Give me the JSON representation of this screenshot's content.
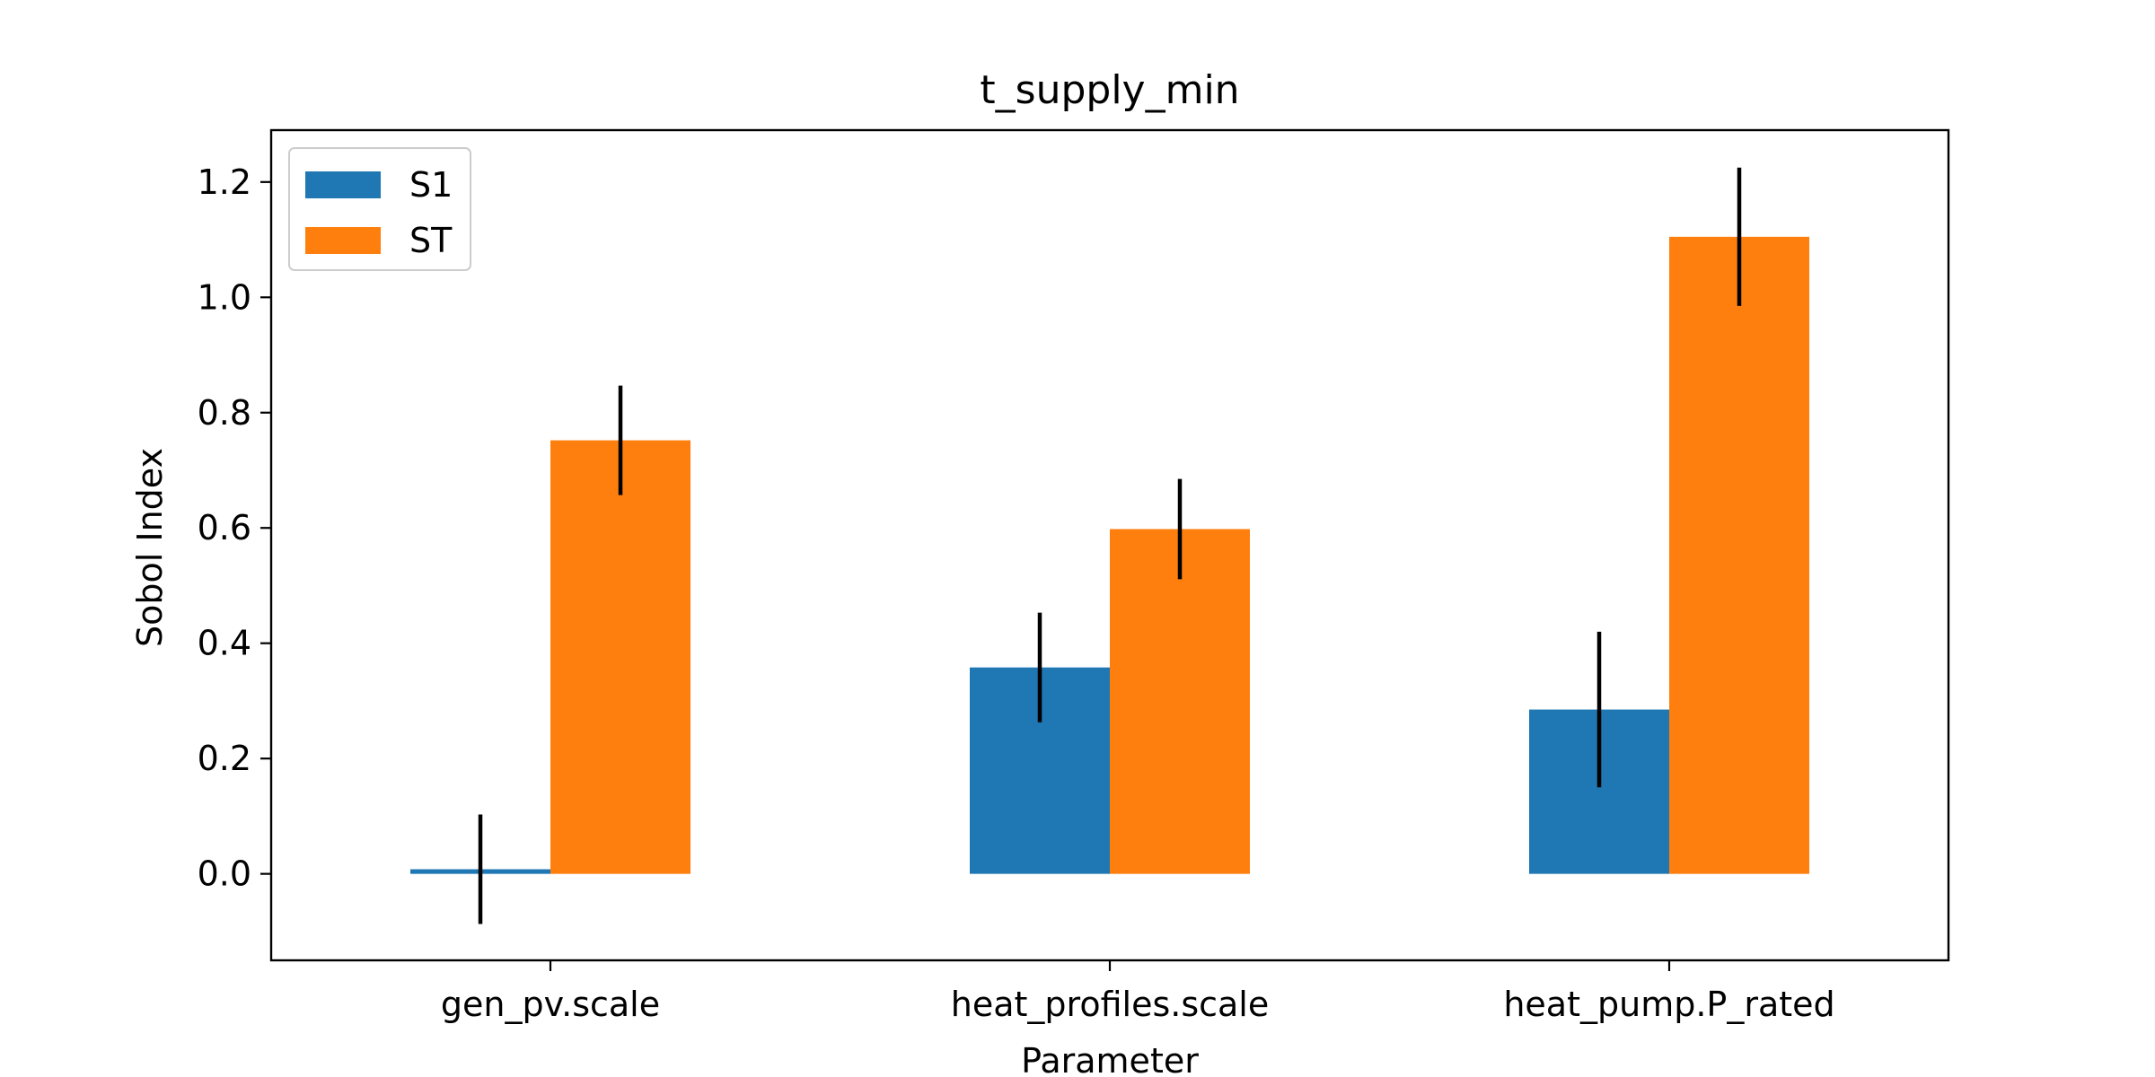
{
  "chart_data": {
    "type": "bar",
    "title": "t_supply_min",
    "xlabel": "Parameter",
    "ylabel": "Sobol Index",
    "categories": [
      "gen_pv.scale",
      "heat_profiles.scale",
      "heat_pump.P_rated"
    ],
    "series": [
      {
        "name": "S1",
        "color": "#1f77b4",
        "values": [
          0.008,
          0.358,
          0.285
        ],
        "error": [
          0.095,
          0.095,
          0.135
        ]
      },
      {
        "name": "ST",
        "color": "#ff7f0e",
        "values": [
          0.752,
          0.598,
          1.105
        ],
        "error": [
          0.095,
          0.087,
          0.12
        ]
      }
    ],
    "ylim": [
      -0.15,
      1.29
    ],
    "yticks": [
      0.0,
      0.2,
      0.4,
      0.6,
      0.8,
      1.0,
      1.2
    ],
    "ytick_labels": [
      "0.0",
      "0.2",
      "0.4",
      "0.6",
      "0.8",
      "1.0",
      "1.2"
    ],
    "legend_position": "top-left",
    "grid": false
  }
}
